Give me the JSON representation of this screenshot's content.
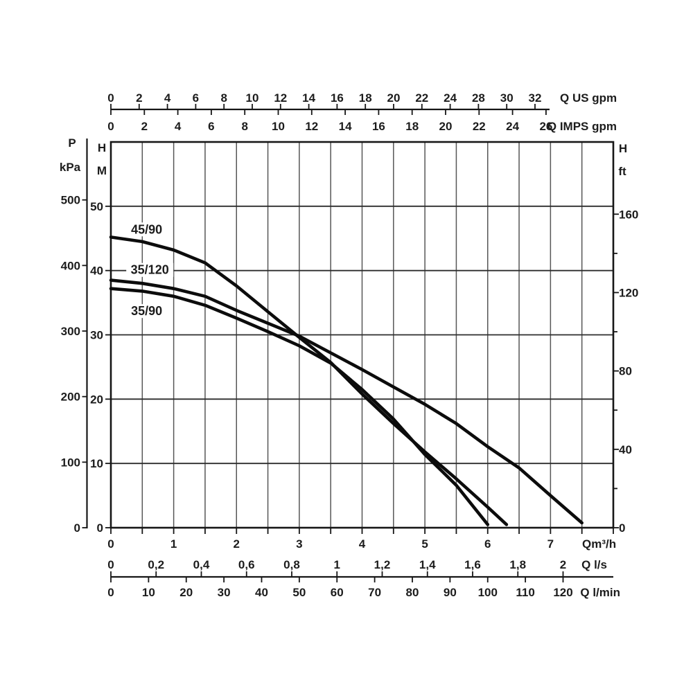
{
  "colors": {
    "background": "#ffffff",
    "curve": "#0c0c0c",
    "grid_vertical": "#565656",
    "grid_horizontal": "#2c2c2c",
    "border": "#161616",
    "axis": "#161616",
    "text": "#1c1c1c"
  },
  "chart_data": {
    "type": "line",
    "title": "",
    "description": "Pump performance curves: head H versus flow Q for three pump models",
    "plot": {
      "q_range_m3h": [
        0,
        8
      ],
      "h_range_m": [
        0,
        60
      ],
      "grid_x_step_m3h": 0.5,
      "grid_y_step_m": 10,
      "grid": true
    },
    "series": [
      {
        "name": "45/90",
        "label": "45/90",
        "label_pos": {
          "q": 0.57,
          "h": 46.4
        },
        "points": [
          [
            0,
            45.2
          ],
          [
            0.5,
            44.5
          ],
          [
            1.0,
            43.2
          ],
          [
            1.5,
            41.2
          ],
          [
            2.0,
            37.6
          ],
          [
            2.5,
            33.6
          ],
          [
            3.0,
            29.6
          ],
          [
            3.5,
            25.7
          ],
          [
            4.0,
            20.8
          ],
          [
            4.5,
            16.2
          ],
          [
            5.0,
            11.8
          ],
          [
            5.5,
            7.6
          ],
          [
            6.0,
            3.2
          ],
          [
            6.3,
            0.5
          ]
        ]
      },
      {
        "name": "35/120",
        "label": "35/120",
        "label_pos": {
          "q": 0.62,
          "h": 40.1
        },
        "points": [
          [
            0,
            38.5
          ],
          [
            0.5,
            38.0
          ],
          [
            1.0,
            37.2
          ],
          [
            1.5,
            36.0
          ],
          [
            2.0,
            33.8
          ],
          [
            2.5,
            31.8
          ],
          [
            3.0,
            29.8
          ],
          [
            3.5,
            27.2
          ],
          [
            4.0,
            24.6
          ],
          [
            4.5,
            21.9
          ],
          [
            5.0,
            19.2
          ],
          [
            5.5,
            16.2
          ],
          [
            6.0,
            12.6
          ],
          [
            6.5,
            9.3
          ],
          [
            7.0,
            5.0
          ],
          [
            7.5,
            0.75
          ]
        ]
      },
      {
        "name": "35/90",
        "label": "35/90",
        "label_pos": {
          "q": 0.57,
          "h": 33.7
        },
        "points": [
          [
            0,
            37.2
          ],
          [
            0.5,
            36.8
          ],
          [
            1.0,
            36.0
          ],
          [
            1.5,
            34.6
          ],
          [
            2.0,
            32.6
          ],
          [
            2.5,
            30.5
          ],
          [
            3.0,
            28.3
          ],
          [
            3.5,
            25.6
          ],
          [
            4.0,
            21.5
          ],
          [
            4.5,
            16.9
          ],
          [
            5.0,
            11.4
          ],
          [
            5.5,
            6.6
          ],
          [
            6.0,
            0.5
          ]
        ]
      }
    ],
    "axes": {
      "top_us_gpm": {
        "unit_label": "Q US gpm",
        "tick_labels": [
          "0",
          "2",
          "4",
          "6",
          "8",
          "10",
          "12",
          "14",
          "16",
          "18",
          "20",
          "22",
          "24",
          "28",
          "30",
          "32"
        ]
      },
      "top_imps_gpm": {
        "unit_label": "Q IMPS gpm",
        "tick_labels": [
          "0",
          "2",
          "4",
          "6",
          "8",
          "10",
          "12",
          "14",
          "16",
          "18",
          "20",
          "22",
          "24",
          "26"
        ]
      },
      "left_kpa": {
        "symbol": "P",
        "unit_label": "kPa",
        "ticks": [
          0,
          100,
          200,
          300,
          400,
          500
        ]
      },
      "left_m": {
        "symbol": "H",
        "unit_label": "M",
        "ticks": [
          0,
          10,
          20,
          30,
          40,
          50
        ]
      },
      "right_ft": {
        "symbol": "H",
        "unit_label": "ft",
        "major_ticks": [
          0,
          40,
          80,
          120,
          160
        ],
        "minor_ticks": [
          20,
          60,
          100,
          140
        ]
      },
      "bottom_m3h": {
        "unit_label": "Qm³/h",
        "labeled_ticks": [
          0,
          1,
          2,
          3,
          4,
          5,
          6,
          7
        ],
        "minor_step": 0.5
      },
      "bottom_ls": {
        "unit_label": "Q l/s",
        "ticks": [
          0,
          0.2,
          0.4,
          0.6,
          0.8,
          1.0,
          1.2,
          1.4,
          1.6,
          1.8,
          2.0
        ],
        "tick_labels": [
          "0",
          "0,2",
          "0,4",
          "0,6",
          "0,8",
          "1",
          "1,2",
          "1,4",
          "1,6",
          "1,8",
          "2"
        ]
      },
      "bottom_lmin": {
        "unit_label": "Q l/min",
        "ticks": [
          0,
          10,
          20,
          30,
          40,
          50,
          60,
          70,
          80,
          90,
          100,
          110,
          120
        ]
      }
    }
  }
}
